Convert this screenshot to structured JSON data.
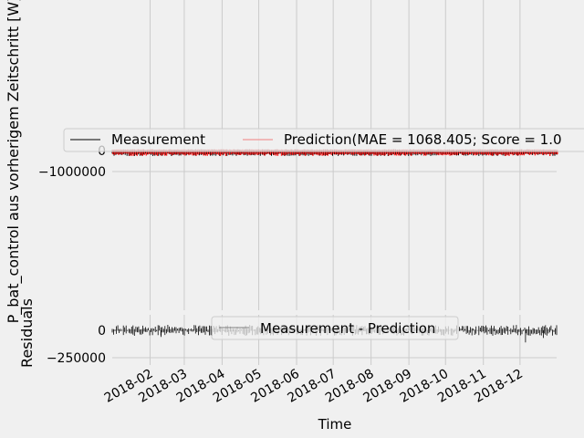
{
  "chart_data": [
    {
      "type": "line",
      "ylabel": "P_bat_control aus vorherigem Zeitschritt [W]",
      "yticks": [
        {
          "value": 0,
          "label": "0"
        },
        {
          "value": -1000000,
          "label": "−1000000"
        }
      ],
      "ylim": [
        -1100000,
        1100000
      ],
      "series": [
        {
          "name": "Measurement",
          "color": "#000000",
          "band": [
            -260000,
            60000
          ]
        },
        {
          "name": "Prediction(MAE = 1068.405; Score = 1.0",
          "color": "#ff0000",
          "band": [
            -260000,
            60000
          ]
        }
      ],
      "legend": "upper center",
      "grid": true
    },
    {
      "type": "line",
      "ylabel": "Residuals",
      "yticks": [
        {
          "value": 0,
          "label": "0"
        },
        {
          "value": -250000,
          "label": "−250000"
        }
      ],
      "ylim": [
        -300000,
        100000
      ],
      "series": [
        {
          "name": "Measurement - Prediction",
          "color": "#000000",
          "band": [
            -50000,
            50000
          ]
        }
      ],
      "legend": "upper center",
      "grid": true
    }
  ],
  "x_axis": {
    "label": "Time",
    "range": [
      "2018-01-01",
      "2018-12-31"
    ],
    "ticks": [
      "2018-02",
      "2018-03",
      "2018-04",
      "2018-05",
      "2018-06",
      "2018-07",
      "2018-08",
      "2018-09",
      "2018-10",
      "2018-11",
      "2018-12"
    ],
    "tick_rotation_deg": 30
  }
}
